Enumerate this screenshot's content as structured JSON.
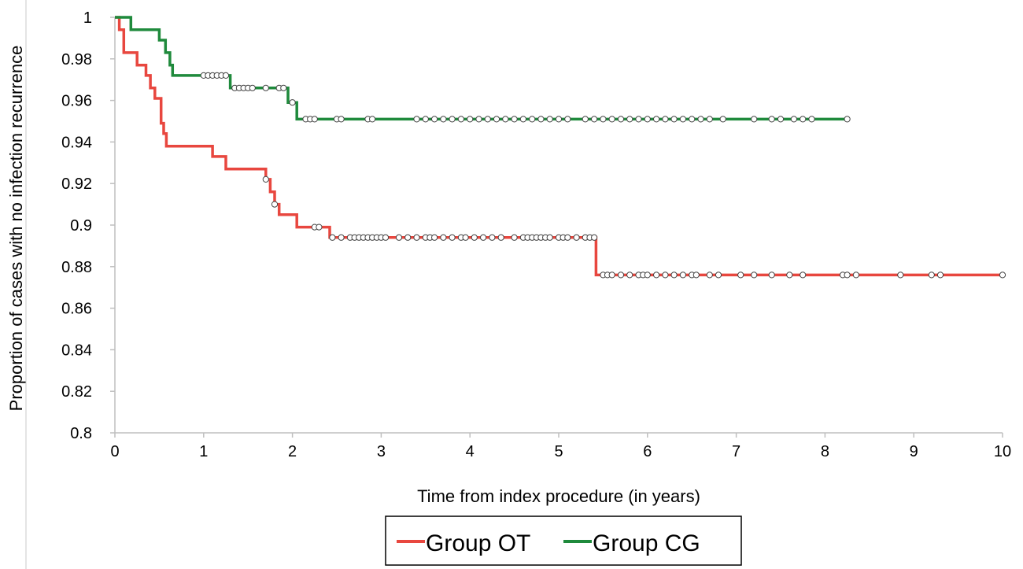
{
  "chart_data": {
    "type": "line",
    "title": "",
    "xlabel": "Time from index procedure (in years)",
    "ylabel": "Proportion of cases with no infection recurrence",
    "xlim": [
      0,
      10
    ],
    "ylim": [
      0.8,
      1
    ],
    "xticks": [
      "0",
      "1",
      "2",
      "3",
      "4",
      "5",
      "6",
      "7",
      "8",
      "9",
      "10"
    ],
    "yticks": [
      "0.8",
      "0.82",
      "0.84",
      "0.86",
      "0.88",
      "0.9",
      "0.92",
      "0.94",
      "0.96",
      "0.98",
      "1"
    ],
    "grid": false,
    "legend_position": "bottom",
    "series": [
      {
        "name": "Group OT",
        "color": "#e8473f",
        "step_points": [
          [
            0,
            1
          ],
          [
            0.05,
            0.994
          ],
          [
            0.1,
            0.983
          ],
          [
            0.25,
            0.977
          ],
          [
            0.35,
            0.972
          ],
          [
            0.4,
            0.966
          ],
          [
            0.45,
            0.961
          ],
          [
            0.52,
            0.949
          ],
          [
            0.55,
            0.944
          ],
          [
            0.58,
            0.938
          ],
          [
            1.1,
            0.933
          ],
          [
            1.25,
            0.927
          ],
          [
            1.7,
            0.922
          ],
          [
            1.75,
            0.916
          ],
          [
            1.8,
            0.91
          ],
          [
            1.85,
            0.905
          ],
          [
            2.05,
            0.899
          ],
          [
            2.42,
            0.894
          ],
          [
            5.42,
            0.876
          ],
          [
            10,
            0.876
          ]
        ],
        "censored": [
          [
            1.7,
            0.922
          ],
          [
            1.8,
            0.91
          ],
          [
            2.25,
            0.899
          ],
          [
            2.3,
            0.899
          ],
          [
            2.45,
            0.894
          ],
          [
            2.55,
            0.894
          ],
          [
            2.65,
            0.894
          ],
          [
            2.7,
            0.894
          ],
          [
            2.75,
            0.894
          ],
          [
            2.8,
            0.894
          ],
          [
            2.85,
            0.894
          ],
          [
            2.9,
            0.894
          ],
          [
            2.95,
            0.894
          ],
          [
            3.0,
            0.894
          ],
          [
            3.05,
            0.894
          ],
          [
            3.2,
            0.894
          ],
          [
            3.3,
            0.894
          ],
          [
            3.4,
            0.894
          ],
          [
            3.5,
            0.894
          ],
          [
            3.55,
            0.894
          ],
          [
            3.6,
            0.894
          ],
          [
            3.7,
            0.894
          ],
          [
            3.8,
            0.894
          ],
          [
            3.9,
            0.894
          ],
          [
            3.95,
            0.894
          ],
          [
            4.05,
            0.894
          ],
          [
            4.15,
            0.894
          ],
          [
            4.25,
            0.894
          ],
          [
            4.35,
            0.894
          ],
          [
            4.5,
            0.894
          ],
          [
            4.6,
            0.894
          ],
          [
            4.65,
            0.894
          ],
          [
            4.7,
            0.894
          ],
          [
            4.75,
            0.894
          ],
          [
            4.8,
            0.894
          ],
          [
            4.85,
            0.894
          ],
          [
            4.9,
            0.894
          ],
          [
            5.0,
            0.894
          ],
          [
            5.05,
            0.894
          ],
          [
            5.1,
            0.894
          ],
          [
            5.2,
            0.894
          ],
          [
            5.3,
            0.894
          ],
          [
            5.35,
            0.894
          ],
          [
            5.4,
            0.894
          ],
          [
            5.5,
            0.876
          ],
          [
            5.55,
            0.876
          ],
          [
            5.6,
            0.876
          ],
          [
            5.7,
            0.876
          ],
          [
            5.8,
            0.876
          ],
          [
            5.9,
            0.876
          ],
          [
            5.95,
            0.876
          ],
          [
            6.0,
            0.876
          ],
          [
            6.1,
            0.876
          ],
          [
            6.2,
            0.876
          ],
          [
            6.3,
            0.876
          ],
          [
            6.4,
            0.876
          ],
          [
            6.5,
            0.876
          ],
          [
            6.55,
            0.876
          ],
          [
            6.7,
            0.876
          ],
          [
            6.8,
            0.876
          ],
          [
            7.05,
            0.876
          ],
          [
            7.2,
            0.876
          ],
          [
            7.4,
            0.876
          ],
          [
            7.6,
            0.876
          ],
          [
            7.75,
            0.876
          ],
          [
            8.2,
            0.876
          ],
          [
            8.25,
            0.876
          ],
          [
            8.35,
            0.876
          ],
          [
            8.85,
            0.876
          ],
          [
            9.2,
            0.876
          ],
          [
            9.3,
            0.876
          ],
          [
            10,
            0.876
          ]
        ]
      },
      {
        "name": "Group CG",
        "color": "#1f8a3c",
        "step_points": [
          [
            0,
            1
          ],
          [
            0.18,
            0.994
          ],
          [
            0.5,
            0.989
          ],
          [
            0.57,
            0.983
          ],
          [
            0.62,
            0.977
          ],
          [
            0.65,
            0.972
          ],
          [
            1.3,
            0.966
          ],
          [
            1.95,
            0.959
          ],
          [
            2.05,
            0.951
          ],
          [
            8.25,
            0.951
          ]
        ],
        "censored": [
          [
            1.0,
            0.972
          ],
          [
            1.05,
            0.972
          ],
          [
            1.1,
            0.972
          ],
          [
            1.15,
            0.972
          ],
          [
            1.2,
            0.972
          ],
          [
            1.25,
            0.972
          ],
          [
            1.35,
            0.966
          ],
          [
            1.4,
            0.966
          ],
          [
            1.45,
            0.966
          ],
          [
            1.5,
            0.966
          ],
          [
            1.55,
            0.966
          ],
          [
            1.7,
            0.966
          ],
          [
            1.85,
            0.966
          ],
          [
            1.9,
            0.966
          ],
          [
            2.0,
            0.959
          ],
          [
            2.15,
            0.951
          ],
          [
            2.2,
            0.951
          ],
          [
            2.25,
            0.951
          ],
          [
            2.5,
            0.951
          ],
          [
            2.55,
            0.951
          ],
          [
            2.85,
            0.951
          ],
          [
            2.9,
            0.951
          ],
          [
            3.4,
            0.951
          ],
          [
            3.5,
            0.951
          ],
          [
            3.6,
            0.951
          ],
          [
            3.7,
            0.951
          ],
          [
            3.8,
            0.951
          ],
          [
            3.9,
            0.951
          ],
          [
            4.0,
            0.951
          ],
          [
            4.1,
            0.951
          ],
          [
            4.2,
            0.951
          ],
          [
            4.3,
            0.951
          ],
          [
            4.4,
            0.951
          ],
          [
            4.5,
            0.951
          ],
          [
            4.6,
            0.951
          ],
          [
            4.7,
            0.951
          ],
          [
            4.8,
            0.951
          ],
          [
            4.9,
            0.951
          ],
          [
            5.0,
            0.951
          ],
          [
            5.1,
            0.951
          ],
          [
            5.3,
            0.951
          ],
          [
            5.4,
            0.951
          ],
          [
            5.5,
            0.951
          ],
          [
            5.6,
            0.951
          ],
          [
            5.7,
            0.951
          ],
          [
            5.8,
            0.951
          ],
          [
            5.9,
            0.951
          ],
          [
            6.0,
            0.951
          ],
          [
            6.1,
            0.951
          ],
          [
            6.2,
            0.951
          ],
          [
            6.3,
            0.951
          ],
          [
            6.4,
            0.951
          ],
          [
            6.5,
            0.951
          ],
          [
            6.6,
            0.951
          ],
          [
            6.7,
            0.951
          ],
          [
            6.85,
            0.951
          ],
          [
            7.2,
            0.951
          ],
          [
            7.4,
            0.951
          ],
          [
            7.5,
            0.951
          ],
          [
            7.65,
            0.951
          ],
          [
            7.75,
            0.951
          ],
          [
            7.85,
            0.951
          ],
          [
            8.25,
            0.951
          ]
        ]
      }
    ]
  }
}
